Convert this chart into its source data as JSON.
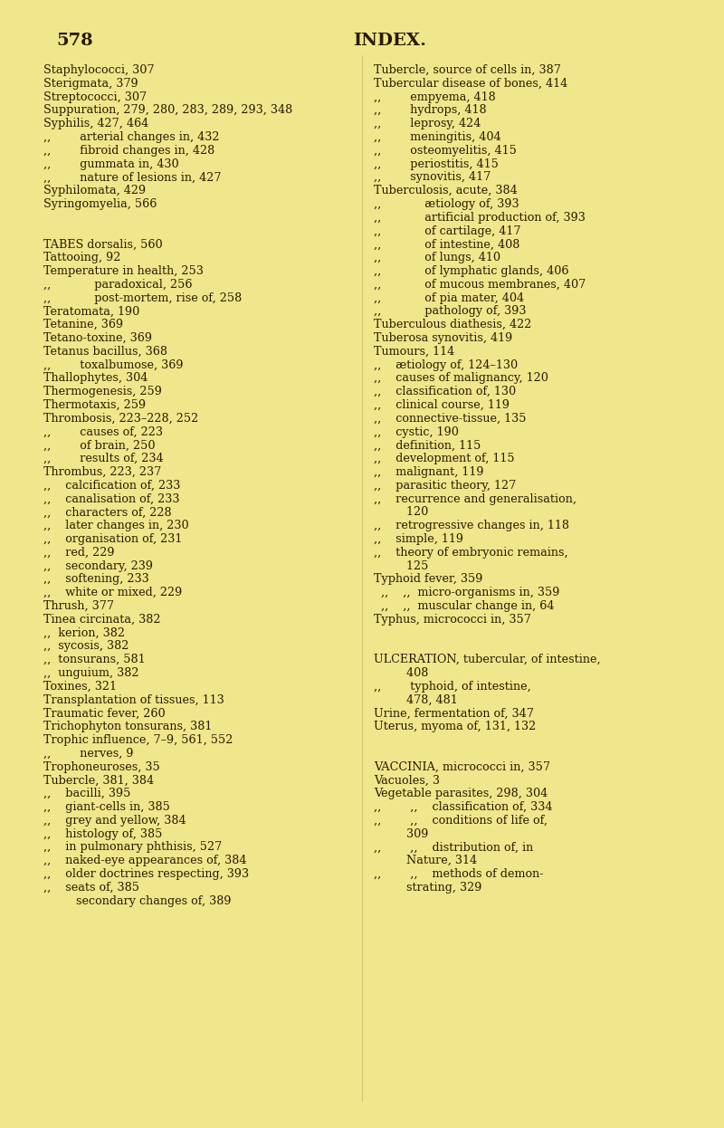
{
  "bg_color": "#f0e68c",
  "text_color": "#2a1a00",
  "page_number": "578",
  "header": "INDEX.",
  "font_size": 9.2,
  "header_font_size": 14,
  "page_num_font_size": 14,
  "left_lines": [
    "Staphylococci, 307",
    "Sterigmata, 379",
    "Streptococci, 307",
    "Suppuration, 279, 280, 283, 289, 293, 348",
    "Syphilis, 427, 464",
    ",,        arterial changes in, 432",
    ",,        fibroid changes in, 428",
    ",,        gummata in, 430",
    ",,        nature of lesions in, 427",
    "Syphilomata, 429",
    "Syringomyelia, 566",
    "",
    "",
    "TABES dorsalis, 560",
    "Tattooing, 92",
    "Temperature in health, 253",
    ",,            paradoxical, 256",
    ",,            post-mortem, rise of, 258",
    "Teratomata, 190",
    "Tetanine, 369",
    "Tetano-toxine, 369",
    "Tetanus bacillus, 368",
    ",,        toxalbumose, 369",
    "Thallophytes, 304",
    "Thermogenesis, 259",
    "Thermotaxis, 259",
    "Thrombosis, 223–228, 252",
    ",,        causes of, 223",
    ",,        of brain, 250",
    ",,        results of, 234",
    "Thrombus, 223, 237",
    ",,    calcification of, 233",
    ",,    canalisation of, 233",
    ",,    characters of, 228",
    ",,    later changes in, 230",
    ",,    organisation of, 231",
    ",,    red, 229",
    ",,    secondary, 239",
    ",,    softening, 233",
    ",,    white or mixed, 229",
    "Thrush, 377",
    "Tinea circinata, 382",
    ",,  kerion, 382",
    ",,  sycosis, 382",
    ",,  tonsurans, 581",
    ",,  unguium, 382",
    "Toxines, 321",
    "Transplantation of tissues, 113",
    "Traumatic fever, 260",
    "Trichophyton tonsurans, 381",
    "Trophic influence, 7–9, 561, 552",
    ",,        nerves, 9",
    "Trophoneuroses, 35",
    "Tubercle, 381, 384",
    ",,    bacilli, 395",
    ",,    giant-cells in, 385",
    ",,    grey and yellow, 384",
    ",,    histology of, 385",
    ",,    in pulmonary phthisis, 527",
    ",,    naked-eye appearances of, 384",
    ",,    older doctrines respecting, 393",
    ",,    seats of, 385",
    "         secondary changes of, 389"
  ],
  "right_lines": [
    "Tubercle, source of cells in, 387",
    "Tubercular disease of bones, 414",
    ",,        empyema, 418",
    ",,        hydrops, 418",
    ",,        leprosy, 424",
    ",,        meningitis, 404",
    ",,        osteomyelitis, 415",
    ",,        periostitis, 415",
    ",,        synovitis, 417",
    "Tuberculosis, acute, 384",
    ",,            ætiology of, 393",
    ",,            artificial production of, 393",
    ",,            of cartilage, 417",
    ",,            of intestine, 408",
    ",,            of lungs, 410",
    ",,            of lymphatic glands, 406",
    ",,            of mucous membranes, 407",
    ",,            of pia mater, 404",
    ",,            pathology of, 393",
    "Tuberculous diathesis, 422",
    "Tuberosa synovitis, 419",
    "Tumours, 114",
    ",,    ætiology of, 124–130",
    ",,    causes of malignancy, 120",
    ",,    classification of, 130",
    ",,    clinical course, 119",
    ",,    connective-tissue, 135",
    ",,    cystic, 190",
    ",,    definition, 115",
    ",,    development of, 115",
    ",,    malignant, 119",
    ",,    parasitic theory, 127",
    ",,    recurrence and generalisation,",
    "         120",
    ",,    retrogressive changes in, 118",
    ",,    simple, 119",
    ",,    theory of embryonic remains,",
    "         125",
    "Typhoid fever, 359",
    "  ,,    ,,  micro-organisms in, 359",
    "  ,,    ,,  muscular change in, 64",
    "Typhus, micrococci in, 357",
    "",
    "",
    "ULCERATION, tubercular, of intestine,",
    "         408",
    ",,        typhoid, of intestine,",
    "         478, 481",
    "Urine, fermentation of, 347",
    "Uterus, myoma of, 131, 132",
    "",
    "",
    "VACCINIA, micrococci in, 357",
    "Vacuoles, 3",
    "Vegetable parasites, 298, 304",
    ",,        ,,    classification of, 334",
    ",,        ,,    conditions of life of,",
    "         309",
    ",,        ,,    distribution of, in",
    "         Nature, 314",
    ",,        ,,    methods of demon-",
    "         strating, 329"
  ]
}
